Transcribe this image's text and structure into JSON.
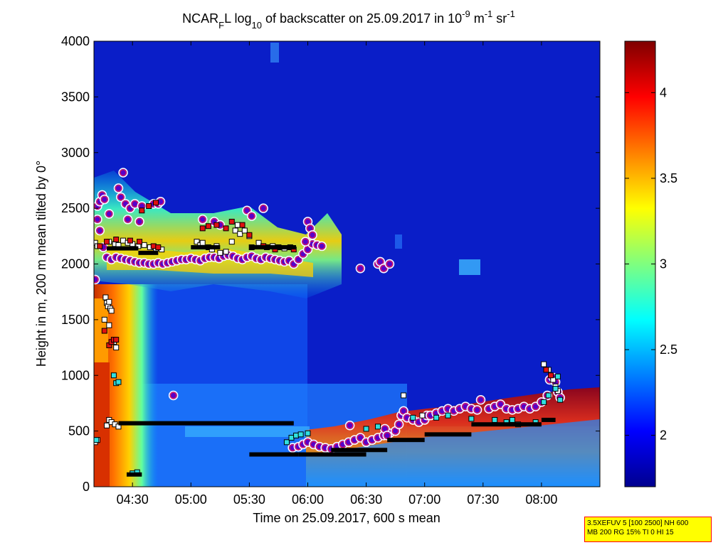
{
  "chart_data": {
    "type": "heatmap",
    "title": {
      "pre": "NCAR",
      "sub1": "F",
      "mid1": "L log",
      "sub2": "10",
      "mid2": " of backscatter on 25.09.2017 in 10",
      "sup1": "-9",
      "mid3": " m",
      "sup2": "-1",
      "mid4": " sr",
      "sup3": "-1"
    },
    "xlabel": "Time on 25.09.2017, 600 s mean",
    "ylabel": "Height in m, 200 m mean tilted by 0°",
    "x_range_hours": [
      4.17,
      8.5
    ],
    "x_ticks": [
      {
        "value": 4.5,
        "label": "04:30"
      },
      {
        "value": 5.0,
        "label": "05:00"
      },
      {
        "value": 5.5,
        "label": "05:30"
      },
      {
        "value": 6.0,
        "label": "06:00"
      },
      {
        "value": 6.5,
        "label": "06:30"
      },
      {
        "value": 7.0,
        "label": "07:00"
      },
      {
        "value": 7.5,
        "label": "07:30"
      },
      {
        "value": 8.0,
        "label": "08:00"
      }
    ],
    "ylim": [
      0,
      4000
    ],
    "y_ticks": [
      0,
      500,
      1000,
      1500,
      2000,
      2500,
      3000,
      3500,
      4000
    ],
    "colorbar": {
      "range": [
        1.7,
        4.3
      ],
      "ticks": [
        2,
        2.5,
        3,
        3.5,
        4
      ],
      "colormap": "jet"
    },
    "series": [
      {
        "marker": "circle",
        "points": [
          [
            4.18,
            1860
          ],
          [
            4.2,
            2520
          ],
          [
            4.22,
            2560
          ],
          [
            4.24,
            2620
          ],
          [
            4.26,
            2580
          ],
          [
            4.2,
            2400
          ],
          [
            4.22,
            2300
          ],
          [
            4.25,
            2150
          ],
          [
            4.28,
            2060
          ],
          [
            4.32,
            2040
          ],
          [
            4.36,
            2060
          ],
          [
            4.4,
            2050
          ],
          [
            4.44,
            2040
          ],
          [
            4.48,
            2030
          ],
          [
            4.52,
            2020
          ],
          [
            4.56,
            2010
          ],
          [
            4.6,
            2010
          ],
          [
            4.64,
            2000
          ],
          [
            4.68,
            2000
          ],
          [
            4.72,
            2010
          ],
          [
            4.76,
            2000
          ],
          [
            4.8,
            2010
          ],
          [
            4.84,
            2020
          ],
          [
            4.88,
            2030
          ],
          [
            4.92,
            2040
          ],
          [
            4.96,
            2040
          ],
          [
            5.0,
            2050
          ],
          [
            5.04,
            2040
          ],
          [
            5.08,
            2030
          ],
          [
            5.12,
            2050
          ],
          [
            5.16,
            2060
          ],
          [
            5.2,
            2060
          ],
          [
            5.24,
            2050
          ],
          [
            5.28,
            2070
          ],
          [
            5.32,
            2080
          ],
          [
            5.36,
            2070
          ],
          [
            5.4,
            2050
          ],
          [
            5.44,
            2040
          ],
          [
            5.48,
            2060
          ],
          [
            5.52,
            2070
          ],
          [
            5.56,
            2050
          ],
          [
            5.6,
            2040
          ],
          [
            5.64,
            2060
          ],
          [
            5.68,
            2050
          ],
          [
            5.72,
            2040
          ],
          [
            5.76,
            2030
          ],
          [
            5.8,
            2020
          ],
          [
            5.84,
            2030
          ],
          [
            5.88,
            2000
          ],
          [
            5.92,
            2040
          ],
          [
            5.96,
            2090
          ],
          [
            6.0,
            2130
          ],
          [
            6.04,
            2180
          ],
          [
            6.08,
            2170
          ],
          [
            6.12,
            2160
          ],
          [
            4.42,
            2820
          ],
          [
            4.38,
            2680
          ],
          [
            4.4,
            2600
          ],
          [
            4.44,
            2540
          ],
          [
            4.48,
            2500
          ],
          [
            4.52,
            2540
          ],
          [
            4.58,
            2520
          ],
          [
            4.68,
            2540
          ],
          [
            4.72,
            2540
          ],
          [
            4.74,
            2560
          ],
          [
            4.3,
            2450
          ],
          [
            4.46,
            2400
          ],
          [
            4.56,
            2380
          ],
          [
            5.1,
            2400
          ],
          [
            5.2,
            2380
          ],
          [
            5.25,
            2350
          ],
          [
            5.48,
            2480
          ],
          [
            5.52,
            2430
          ],
          [
            5.62,
            2500
          ],
          [
            6.0,
            2380
          ],
          [
            6.02,
            2320
          ],
          [
            6.04,
            2260
          ],
          [
            5.98,
            2200
          ],
          [
            4.85,
            820
          ],
          [
            6.45,
            1960
          ],
          [
            6.6,
            2000
          ],
          [
            6.62,
            2020
          ],
          [
            6.65,
            1960
          ],
          [
            6.7,
            2000
          ],
          [
            5.87,
            350
          ],
          [
            5.92,
            360
          ],
          [
            5.96,
            380
          ],
          [
            6.0,
            400
          ],
          [
            6.05,
            380
          ],
          [
            6.1,
            360
          ],
          [
            6.15,
            350
          ],
          [
            6.2,
            340
          ],
          [
            6.25,
            360
          ],
          [
            6.3,
            380
          ],
          [
            6.35,
            400
          ],
          [
            6.4,
            420
          ],
          [
            6.45,
            440
          ],
          [
            6.5,
            400
          ],
          [
            6.55,
            420
          ],
          [
            6.6,
            440
          ],
          [
            6.65,
            460
          ],
          [
            6.7,
            480
          ],
          [
            6.75,
            500
          ],
          [
            6.78,
            560
          ],
          [
            6.8,
            640
          ],
          [
            6.82,
            680
          ],
          [
            6.85,
            620
          ],
          [
            6.9,
            600
          ],
          [
            6.95,
            580
          ],
          [
            7.0,
            600
          ],
          [
            7.02,
            640
          ],
          [
            7.05,
            640
          ],
          [
            7.1,
            660
          ],
          [
            7.15,
            680
          ],
          [
            7.2,
            700
          ],
          [
            7.25,
            680
          ],
          [
            7.3,
            700
          ],
          [
            7.35,
            720
          ],
          [
            7.4,
            700
          ],
          [
            7.45,
            690
          ],
          [
            7.48,
            780
          ],
          [
            7.55,
            700
          ],
          [
            7.6,
            720
          ],
          [
            7.65,
            740
          ],
          [
            7.7,
            700
          ],
          [
            7.75,
            690
          ],
          [
            7.8,
            700
          ],
          [
            7.85,
            720
          ],
          [
            7.9,
            700
          ],
          [
            7.95,
            720
          ],
          [
            8.0,
            760
          ],
          [
            8.05,
            820
          ],
          [
            8.07,
            960
          ],
          [
            8.1,
            980
          ],
          [
            8.12,
            940
          ],
          [
            8.14,
            850
          ],
          [
            8.16,
            800
          ],
          [
            6.36,
            550
          ],
          [
            6.66,
            520
          ],
          [
            6.68,
            460
          ]
        ]
      },
      {
        "marker": "square-white",
        "points": [
          [
            4.18,
            2190
          ],
          [
            4.2,
            2160
          ],
          [
            4.3,
            2200
          ],
          [
            4.35,
            2180
          ],
          [
            4.38,
            2170
          ],
          [
            4.42,
            2210
          ],
          [
            4.46,
            2190
          ],
          [
            4.5,
            2180
          ],
          [
            4.55,
            2160
          ],
          [
            4.6,
            2170
          ],
          [
            4.65,
            2150
          ],
          [
            4.7,
            2140
          ],
          [
            4.75,
            2130
          ],
          [
            5.05,
            2200
          ],
          [
            5.08,
            2170
          ],
          [
            5.1,
            2190
          ],
          [
            5.15,
            2150
          ],
          [
            5.18,
            2130
          ],
          [
            5.22,
            2160
          ],
          [
            5.25,
            2100
          ],
          [
            5.3,
            2110
          ],
          [
            5.35,
            2200
          ],
          [
            5.38,
            2300
          ],
          [
            5.4,
            2350
          ],
          [
            5.42,
            2270
          ],
          [
            5.46,
            2300
          ],
          [
            5.5,
            2250
          ],
          [
            5.52,
            2150
          ],
          [
            5.58,
            2190
          ],
          [
            5.62,
            2160
          ],
          [
            5.65,
            2150
          ],
          [
            5.7,
            2160
          ],
          [
            5.75,
            2150
          ],
          [
            5.8,
            2140
          ],
          [
            5.85,
            2150
          ],
          [
            4.27,
            1700
          ],
          [
            4.28,
            1650
          ],
          [
            4.29,
            1620
          ],
          [
            4.3,
            1660
          ],
          [
            4.31,
            1600
          ],
          [
            4.32,
            1580
          ],
          [
            4.26,
            1500
          ],
          [
            4.3,
            1450
          ],
          [
            4.34,
            1300
          ],
          [
            4.36,
            1250
          ],
          [
            4.28,
            550
          ],
          [
            4.3,
            600
          ],
          [
            4.32,
            580
          ],
          [
            4.35,
            560
          ],
          [
            4.38,
            540
          ],
          [
            4.18,
            400
          ],
          [
            4.2,
            420
          ],
          [
            8.02,
            1100
          ],
          [
            8.06,
            1050
          ],
          [
            8.1,
            960
          ],
          [
            8.12,
            900
          ],
          [
            8.14,
            860
          ],
          [
            6.82,
            820
          ],
          [
            6.98,
            640
          ]
        ]
      },
      {
        "marker": "square-red",
        "points": [
          [
            4.22,
            2160
          ],
          [
            4.28,
            2200
          ],
          [
            4.36,
            2220
          ],
          [
            4.48,
            2210
          ],
          [
            4.56,
            2200
          ],
          [
            4.68,
            2160
          ],
          [
            4.72,
            2150
          ],
          [
            4.58,
            2480
          ],
          [
            4.64,
            2520
          ],
          [
            4.7,
            2550
          ],
          [
            5.1,
            2320
          ],
          [
            5.15,
            2340
          ],
          [
            5.22,
            2350
          ],
          [
            5.3,
            2320
          ],
          [
            5.35,
            2380
          ],
          [
            5.44,
            2350
          ],
          [
            5.5,
            2260
          ],
          [
            5.62,
            2160
          ],
          [
            5.72,
            2130
          ],
          [
            5.88,
            2130
          ],
          [
            4.3,
            1270
          ],
          [
            4.32,
            1300
          ],
          [
            4.34,
            1320
          ],
          [
            4.36,
            1320
          ],
          [
            4.26,
            1400
          ],
          [
            8.04,
            1050
          ],
          [
            8.08,
            1000
          ]
        ]
      },
      {
        "marker": "square-cyan",
        "points": [
          [
            4.19,
            420
          ],
          [
            4.36,
            930
          ],
          [
            4.38,
            940
          ],
          [
            4.34,
            1000
          ],
          [
            4.5,
            120
          ],
          [
            4.54,
            130
          ],
          [
            5.82,
            400
          ],
          [
            5.86,
            440
          ],
          [
            5.9,
            460
          ],
          [
            5.94,
            470
          ],
          [
            6.0,
            480
          ],
          [
            6.5,
            520
          ],
          [
            6.6,
            540
          ],
          [
            6.9,
            620
          ],
          [
            7.1,
            620
          ],
          [
            7.2,
            640
          ],
          [
            7.4,
            610
          ],
          [
            7.6,
            600
          ],
          [
            7.7,
            580
          ],
          [
            7.8,
            560
          ],
          [
            7.95,
            580
          ],
          [
            8.02,
            760
          ],
          [
            8.06,
            820
          ],
          [
            8.12,
            880
          ],
          [
            8.16,
            780
          ],
          [
            8.14,
            990
          ],
          [
            7.75,
            600
          ]
        ]
      },
      {
        "marker": "square-black",
        "segments": [
          [
            4.28,
            4.55,
            2140
          ],
          [
            4.55,
            4.72,
            2100
          ],
          [
            5.0,
            5.25,
            2150
          ],
          [
            5.5,
            5.9,
            2150
          ],
          [
            4.38,
            5.88,
            570
          ],
          [
            5.5,
            5.92,
            290
          ],
          [
            5.92,
            6.5,
            290
          ],
          [
            6.2,
            6.68,
            330
          ],
          [
            6.68,
            7.0,
            420
          ],
          [
            7.0,
            7.4,
            470
          ],
          [
            7.4,
            8.0,
            560
          ],
          [
            8.0,
            8.12,
            600
          ],
          [
            4.45,
            4.58,
            110
          ]
        ]
      }
    ]
  }
}
